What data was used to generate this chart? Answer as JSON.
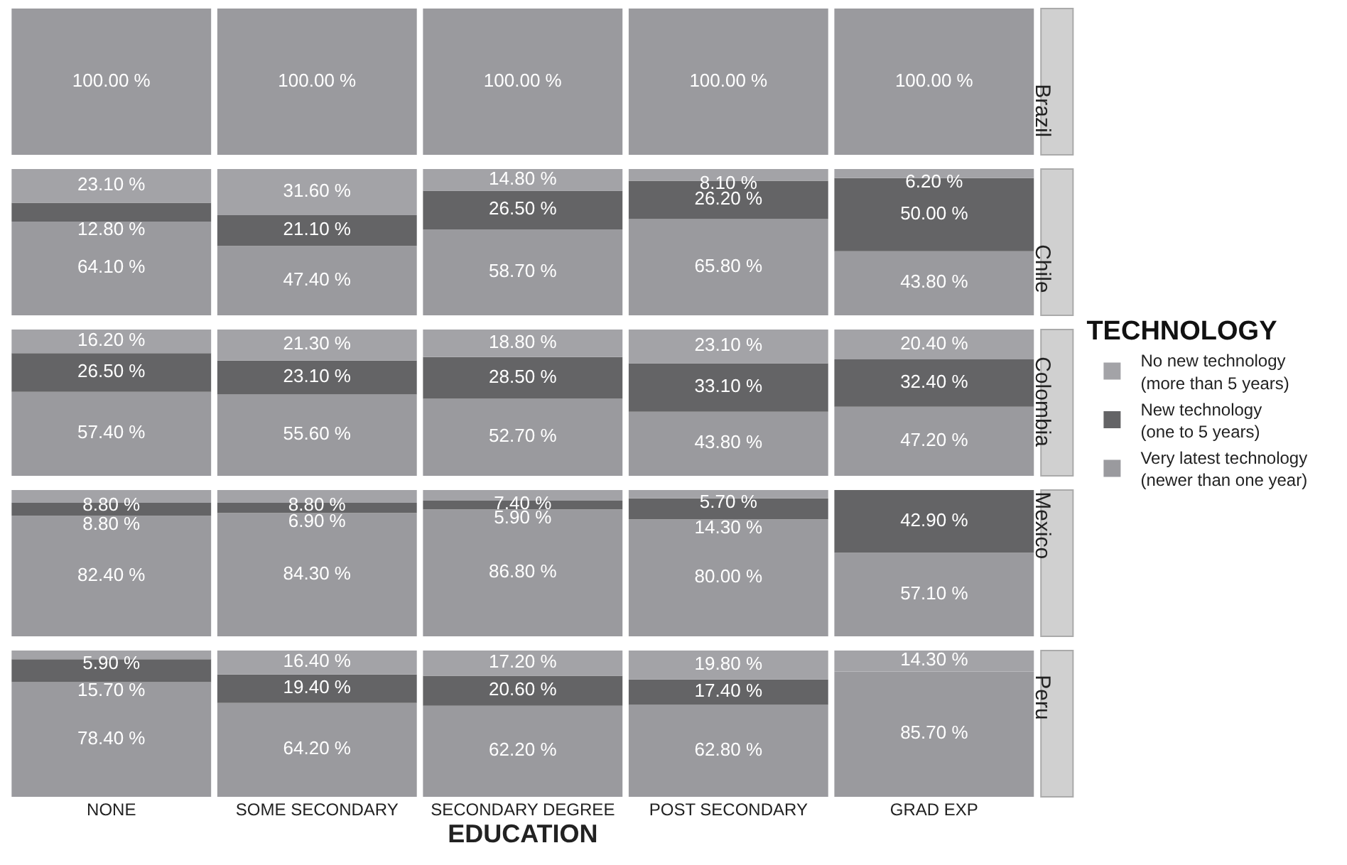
{
  "chart_data": [
    {
      "type": "bar",
      "title": "Brazil",
      "stacked": true,
      "ylim": [
        0,
        100
      ],
      "tick_labels": false,
      "categories": [
        null,
        null,
        null,
        null,
        null
      ],
      "series": [
        {
          "color": "#9a9a9e",
          "values": [
            100,
            100,
            100,
            100,
            100
          ],
          "value_labels": [
            "100.00 %",
            "100.00 %",
            "100.00 %",
            "100.00 %",
            "100.00 %"
          ]
        }
      ]
    },
    {
      "type": "bar",
      "title": "Chile",
      "stacked": true,
      "ylim": [
        0,
        100
      ],
      "tick_labels": false,
      "categories": [
        null,
        null,
        null,
        null,
        null
      ],
      "series": [
        {
          "color": "#9a9a9e",
          "values": [
            64.1,
            47.4,
            58.7,
            65.8,
            43.8
          ],
          "value_labels": [
            "64.10 %",
            "47.40 %",
            "58.70 %",
            "65.80 %",
            "43.80 %"
          ]
        },
        {
          "color": "#646466",
          "values": [
            12.8,
            21.1,
            26.5,
            26.2,
            50.0
          ],
          "value_labels": [
            "12.80 %",
            "21.10 %",
            "26.50 %",
            "26.20 %",
            "50.00 %"
          ]
        },
        {
          "color": "#a3a3a7",
          "values": [
            23.1,
            31.6,
            14.8,
            8.1,
            6.2
          ],
          "value_labels": [
            "23.10 %",
            "31.60 %",
            "14.80 %",
            "8.10 %",
            "6.20 %"
          ]
        }
      ]
    },
    {
      "type": "bar",
      "title": "Colombia",
      "stacked": true,
      "ylim": [
        0,
        100
      ],
      "tick_labels": false,
      "legend": "right",
      "legend_title": "TECHNOLOGY",
      "categories": [
        null,
        null,
        null,
        null,
        null
      ],
      "series": [
        {
          "name": "Very latest technology\n(newer than one year)",
          "color": "#9a9a9e",
          "values": [
            57.4,
            55.6,
            52.7,
            43.8,
            47.2
          ],
          "value_labels": [
            "57.40 %",
            "55.60 %",
            "52.70 %",
            "43.80 %",
            "47.20 %"
          ]
        },
        {
          "name": "New technology\n(one to 5 years)",
          "color": "#646466",
          "values": [
            26.5,
            23.1,
            28.5,
            33.1,
            32.4
          ],
          "value_labels": [
            "26.50 %",
            "23.10 %",
            "28.50 %",
            "33.10 %",
            "32.40 %"
          ]
        },
        {
          "name": "No new technology\n(more than 5 years)",
          "color": "#a3a3a7",
          "values": [
            16.2,
            21.3,
            18.8,
            23.1,
            20.4
          ],
          "value_labels": [
            "16.20 %",
            "21.30 %",
            "18.80 %",
            "23.10 %",
            "20.40 %"
          ]
        }
      ]
    },
    {
      "type": "bar",
      "title": "Mexico",
      "stacked": true,
      "ylim": [
        0,
        100
      ],
      "tick_labels": false,
      "categories": [
        null,
        null,
        null,
        null,
        null
      ],
      "series": [
        {
          "color": "#9a9a9e",
          "values": [
            82.4,
            84.3,
            86.8,
            80.0,
            57.1
          ],
          "value_labels": [
            "82.40 %",
            "84.30 %",
            "86.80 %",
            "80.00 %",
            "57.10 %"
          ]
        },
        {
          "color": "#646466",
          "values": [
            8.8,
            6.9,
            5.9,
            14.3,
            42.9
          ],
          "value_labels": [
            "8.80 %",
            "6.90 %",
            "5.90 %",
            "14.30 %",
            "42.90 %"
          ]
        },
        {
          "color": "#a3a3a7",
          "values": [
            8.8,
            8.8,
            7.4,
            5.7,
            null
          ],
          "value_labels": [
            "8.80 %",
            "8.80 %",
            "7.40 %",
            "5.70 %",
            null
          ]
        }
      ]
    },
    {
      "type": "bar",
      "title": "Peru",
      "stacked": true,
      "ylim": [
        0,
        100
      ],
      "tick_labels": "x",
      "xlabel": "EDUCATION",
      "categories": [
        "NONE",
        "SOME SECONDARY",
        "SECONDARY DEGREE",
        "POST SECONDARY",
        "GRAD EXP"
      ],
      "series": [
        {
          "color": "#9a9a9e",
          "values": [
            78.4,
            64.2,
            62.2,
            62.8,
            85.7
          ],
          "value_labels": [
            "78.40 %",
            "64.20 %",
            "62.20 %",
            "62.80 %",
            "85.70 %"
          ]
        },
        {
          "color": "#646466",
          "values": [
            15.7,
            19.4,
            20.6,
            17.4,
            null
          ],
          "value_labels": [
            "15.70 %",
            "19.40 %",
            "20.60 %",
            "17.40 %",
            null
          ]
        },
        {
          "color": "#a3a3a7",
          "values": [
            5.9,
            16.4,
            17.2,
            19.8,
            14.3
          ],
          "value_labels": [
            "5.90 %",
            "16.40 %",
            "17.20 %",
            "19.80 %",
            "14.30 %"
          ]
        }
      ]
    }
  ]
}
